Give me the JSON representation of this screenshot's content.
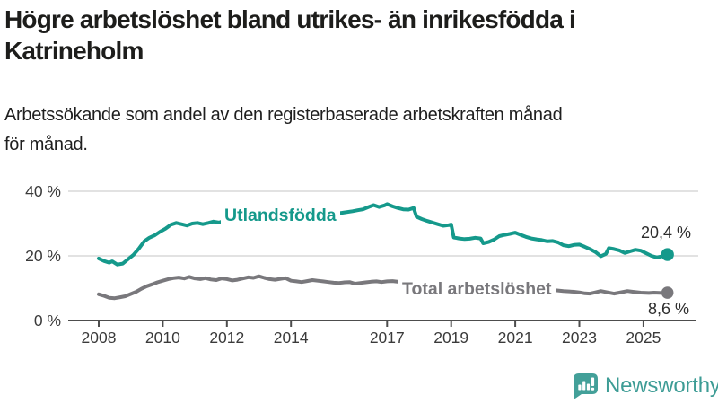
{
  "header": {
    "title_lines": [
      "Högre arbetslöshet bland utrikes- än inrikesfödda i",
      "Katrineholm"
    ],
    "subtitle_lines": [
      "Arbetssökande som andel av den registerbaserade arbetskraften månad",
      "för månad."
    ]
  },
  "footer": {
    "brand": "Newsworthy",
    "logo_icon": "newsworthy-bar-chart-speech-bubble-icon"
  },
  "colors": {
    "accent_teal": "#15998b",
    "series_gray": "#79787c",
    "title_text": "#1d1d1b",
    "axis_text": "#3a3a3a",
    "gridline": "#d9d9d9",
    "axis_line": "#4d4d4d",
    "value_label_text": "#2d2d2d",
    "logo_teal": "#43a099"
  },
  "chart_data": {
    "type": "line",
    "title": "Högre arbetslöshet bland utrikes- än inrikesfödda i Katrineholm",
    "subtitle": "Arbetssökande som andel av den registerbaserade arbetskraften månad för månad.",
    "ylabel": "",
    "xlabel": "",
    "ylim": [
      0,
      44
    ],
    "xlim": [
      2007.1,
      2026.6
    ],
    "grid": "horizontal",
    "legend_position": "inline-on-line",
    "y_ticks": [
      {
        "label": "40 %",
        "value": 40
      },
      {
        "label": "20 %",
        "value": 20
      },
      {
        "label": "0 %",
        "value": 0
      }
    ],
    "x_ticks": [
      {
        "label": "2008",
        "value": 2008
      },
      {
        "label": "2010",
        "value": 2010
      },
      {
        "label": "2012",
        "value": 2012
      },
      {
        "label": "2014",
        "value": 2014
      },
      {
        "label": "2017",
        "value": 2017
      },
      {
        "label": "2019",
        "value": 2019
      },
      {
        "label": "2021",
        "value": 2021
      },
      {
        "label": "2023",
        "value": 2023
      },
      {
        "label": "2025",
        "value": 2025
      }
    ],
    "series": [
      {
        "name": "Utlandsfödda",
        "color": "#15998b",
        "end_label": "20,4 %",
        "end_value": 20.4,
        "points": [
          [
            2008.0,
            19.2
          ],
          [
            2008.17,
            18.4
          ],
          [
            2008.33,
            17.9
          ],
          [
            2008.42,
            18.3
          ],
          [
            2008.58,
            17.3
          ],
          [
            2008.75,
            17.6
          ],
          [
            2008.92,
            19.0
          ],
          [
            2009.08,
            20.3
          ],
          [
            2009.25,
            22.2
          ],
          [
            2009.42,
            24.5
          ],
          [
            2009.58,
            25.6
          ],
          [
            2009.75,
            26.4
          ],
          [
            2009.92,
            27.5
          ],
          [
            2010.08,
            28.4
          ],
          [
            2010.25,
            29.6
          ],
          [
            2010.42,
            30.2
          ],
          [
            2010.58,
            29.8
          ],
          [
            2010.75,
            29.4
          ],
          [
            2010.92,
            30.0
          ],
          [
            2011.08,
            30.2
          ],
          [
            2011.25,
            29.8
          ],
          [
            2011.42,
            30.2
          ],
          [
            2011.58,
            30.6
          ],
          [
            2011.75,
            30.3
          ],
          [
            2011.92,
            30.8
          ],
          [
            2012.25,
            31.2
          ],
          [
            2012.58,
            31.6
          ],
          [
            2012.92,
            31.9
          ],
          [
            2013.25,
            32.1
          ],
          [
            2013.58,
            32.0
          ],
          [
            2013.92,
            31.8
          ],
          [
            2014.25,
            32.1
          ],
          [
            2014.58,
            32.4
          ],
          [
            2014.92,
            32.7
          ],
          [
            2015.25,
            33.0
          ],
          [
            2015.58,
            33.3
          ],
          [
            2015.92,
            33.8
          ],
          [
            2016.08,
            34.1
          ],
          [
            2016.25,
            34.4
          ],
          [
            2016.42,
            35.1
          ],
          [
            2016.58,
            35.7
          ],
          [
            2016.75,
            35.1
          ],
          [
            2016.92,
            35.6
          ],
          [
            2017.0,
            36.0
          ],
          [
            2017.17,
            35.3
          ],
          [
            2017.33,
            34.8
          ],
          [
            2017.5,
            34.4
          ],
          [
            2017.67,
            34.3
          ],
          [
            2017.83,
            34.8
          ],
          [
            2017.92,
            32.1
          ],
          [
            2018.08,
            31.4
          ],
          [
            2018.25,
            30.8
          ],
          [
            2018.42,
            30.3
          ],
          [
            2018.58,
            29.8
          ],
          [
            2018.75,
            29.3
          ],
          [
            2018.92,
            29.5
          ],
          [
            2019.0,
            29.7
          ],
          [
            2019.08,
            25.7
          ],
          [
            2019.25,
            25.4
          ],
          [
            2019.42,
            25.2
          ],
          [
            2019.58,
            25.3
          ],
          [
            2019.75,
            25.6
          ],
          [
            2019.92,
            25.4
          ],
          [
            2020.0,
            23.9
          ],
          [
            2020.17,
            24.3
          ],
          [
            2020.33,
            25.0
          ],
          [
            2020.5,
            26.1
          ],
          [
            2020.67,
            26.5
          ],
          [
            2020.83,
            26.8
          ],
          [
            2021.0,
            27.2
          ],
          [
            2021.17,
            26.5
          ],
          [
            2021.33,
            25.9
          ],
          [
            2021.5,
            25.4
          ],
          [
            2021.67,
            25.1
          ],
          [
            2021.83,
            24.9
          ],
          [
            2022.0,
            24.5
          ],
          [
            2022.17,
            24.6
          ],
          [
            2022.33,
            24.2
          ],
          [
            2022.5,
            23.3
          ],
          [
            2022.67,
            23.0
          ],
          [
            2022.83,
            23.4
          ],
          [
            2023.0,
            23.5
          ],
          [
            2023.17,
            22.8
          ],
          [
            2023.33,
            22.1
          ],
          [
            2023.5,
            21.2
          ],
          [
            2023.67,
            19.9
          ],
          [
            2023.83,
            20.6
          ],
          [
            2023.92,
            22.4
          ],
          [
            2024.08,
            22.1
          ],
          [
            2024.25,
            21.7
          ],
          [
            2024.42,
            20.9
          ],
          [
            2024.58,
            21.4
          ],
          [
            2024.75,
            21.9
          ],
          [
            2024.92,
            21.6
          ],
          [
            2025.08,
            20.8
          ],
          [
            2025.25,
            20.0
          ],
          [
            2025.42,
            19.5
          ],
          [
            2025.58,
            19.9
          ],
          [
            2025.75,
            20.4
          ]
        ]
      },
      {
        "name": "Total arbetslöshet",
        "color": "#79787c",
        "end_label": "8,6 %",
        "end_value": 8.6,
        "points": [
          [
            2008.0,
            8.1
          ],
          [
            2008.17,
            7.6
          ],
          [
            2008.33,
            7.0
          ],
          [
            2008.5,
            6.9
          ],
          [
            2008.67,
            7.2
          ],
          [
            2008.83,
            7.5
          ],
          [
            2009.0,
            8.2
          ],
          [
            2009.17,
            8.9
          ],
          [
            2009.33,
            9.8
          ],
          [
            2009.5,
            10.6
          ],
          [
            2009.67,
            11.2
          ],
          [
            2009.83,
            11.8
          ],
          [
            2010.0,
            12.3
          ],
          [
            2010.17,
            12.8
          ],
          [
            2010.33,
            13.1
          ],
          [
            2010.5,
            13.3
          ],
          [
            2010.67,
            13.0
          ],
          [
            2010.83,
            13.5
          ],
          [
            2011.0,
            13.0
          ],
          [
            2011.17,
            12.8
          ],
          [
            2011.33,
            13.1
          ],
          [
            2011.5,
            12.7
          ],
          [
            2011.67,
            12.5
          ],
          [
            2011.83,
            13.0
          ],
          [
            2012.0,
            12.8
          ],
          [
            2012.17,
            12.4
          ],
          [
            2012.33,
            12.6
          ],
          [
            2012.5,
            13.0
          ],
          [
            2012.67,
            13.4
          ],
          [
            2012.83,
            13.2
          ],
          [
            2013.0,
            13.7
          ],
          [
            2013.17,
            13.2
          ],
          [
            2013.33,
            12.8
          ],
          [
            2013.5,
            12.6
          ],
          [
            2013.67,
            12.9
          ],
          [
            2013.83,
            13.1
          ],
          [
            2014.0,
            12.3
          ],
          [
            2014.17,
            12.1
          ],
          [
            2014.33,
            11.9
          ],
          [
            2014.5,
            12.2
          ],
          [
            2014.67,
            12.5
          ],
          [
            2014.83,
            12.3
          ],
          [
            2015.0,
            12.1
          ],
          [
            2015.17,
            11.9
          ],
          [
            2015.33,
            11.7
          ],
          [
            2015.5,
            11.6
          ],
          [
            2015.67,
            11.8
          ],
          [
            2015.83,
            11.9
          ],
          [
            2016.0,
            11.4
          ],
          [
            2016.17,
            11.6
          ],
          [
            2016.33,
            11.8
          ],
          [
            2016.5,
            12.0
          ],
          [
            2016.67,
            12.1
          ],
          [
            2016.83,
            11.9
          ],
          [
            2017.0,
            12.1
          ],
          [
            2017.17,
            12.2
          ],
          [
            2017.5,
            11.8
          ],
          [
            2018.0,
            11.2
          ],
          [
            2018.5,
            10.6
          ],
          [
            2019.0,
            10.0
          ],
          [
            2019.5,
            9.7
          ],
          [
            2020.0,
            10.3
          ],
          [
            2020.5,
            10.9
          ],
          [
            2021.0,
            10.7
          ],
          [
            2021.5,
            10.1
          ],
          [
            2022.0,
            9.6
          ],
          [
            2022.5,
            9.1
          ],
          [
            2022.83,
            8.9
          ],
          [
            2023.0,
            8.7
          ],
          [
            2023.17,
            8.4
          ],
          [
            2023.33,
            8.3
          ],
          [
            2023.5,
            8.7
          ],
          [
            2023.67,
            9.1
          ],
          [
            2023.83,
            8.8
          ],
          [
            2024.08,
            8.3
          ],
          [
            2024.25,
            8.6
          ],
          [
            2024.5,
            9.1
          ],
          [
            2024.67,
            8.9
          ],
          [
            2024.92,
            8.6
          ],
          [
            2025.17,
            8.5
          ],
          [
            2025.33,
            8.6
          ],
          [
            2025.58,
            8.5
          ],
          [
            2025.75,
            8.6
          ]
        ]
      }
    ]
  }
}
